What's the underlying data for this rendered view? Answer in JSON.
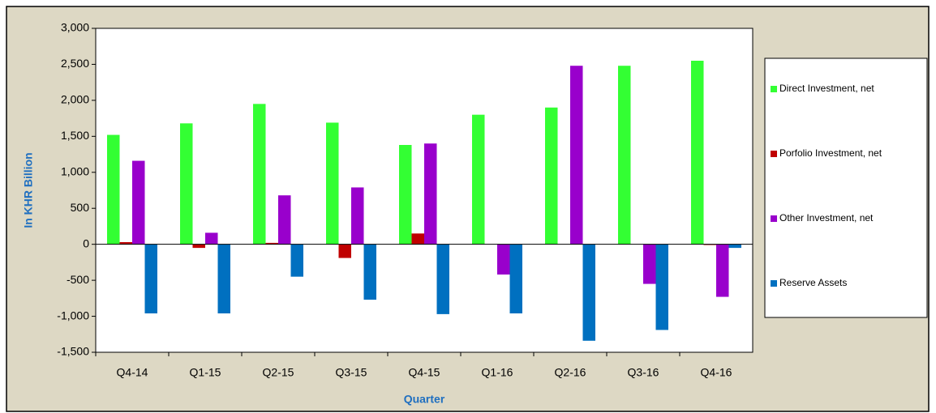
{
  "chart_data": {
    "type": "bar",
    "x_label": "Quarter",
    "y_label": "In KHR Billion",
    "categories": [
      "Q4-14",
      "Q1-15",
      "Q2-15",
      "Q3-15",
      "Q4-15",
      "Q1-16",
      "Q2-16",
      "Q3-16",
      "Q4-16"
    ],
    "series": [
      {
        "name": "Direct Investment, net",
        "color": "#33ff33",
        "values": [
          1520,
          1680,
          1950,
          1690,
          1380,
          1800,
          1900,
          2480,
          2550
        ]
      },
      {
        "name": "Porfolio Investment, net",
        "color": "#c00000",
        "values": [
          30,
          -50,
          20,
          -190,
          150,
          0,
          0,
          0,
          -10
        ]
      },
      {
        "name": "Other Investment, net",
        "color": "#9900cc",
        "values": [
          1160,
          160,
          680,
          790,
          1400,
          -420,
          2480,
          -550,
          -730
        ]
      },
      {
        "name": "Reserve Assets",
        "color": "#0070c0",
        "values": [
          -960,
          -960,
          -450,
          -770,
          -970,
          -960,
          -1340,
          -1190,
          -50
        ]
      }
    ],
    "ylim": [
      -1500,
      3000
    ],
    "yticks": [
      {
        "value": -1500,
        "label": "-1,500"
      },
      {
        "value": -1000,
        "label": "-1,000"
      },
      -500,
      0,
      500,
      {
        "value": 1000,
        "label": "1,000"
      },
      {
        "value": 1500,
        "label": "1,500"
      },
      {
        "value": 2000,
        "label": "2,000"
      },
      {
        "value": 2500,
        "label": "2,500"
      },
      {
        "value": 3000,
        "label": "3,000"
      }
    ],
    "grid": false,
    "legend": "right"
  }
}
